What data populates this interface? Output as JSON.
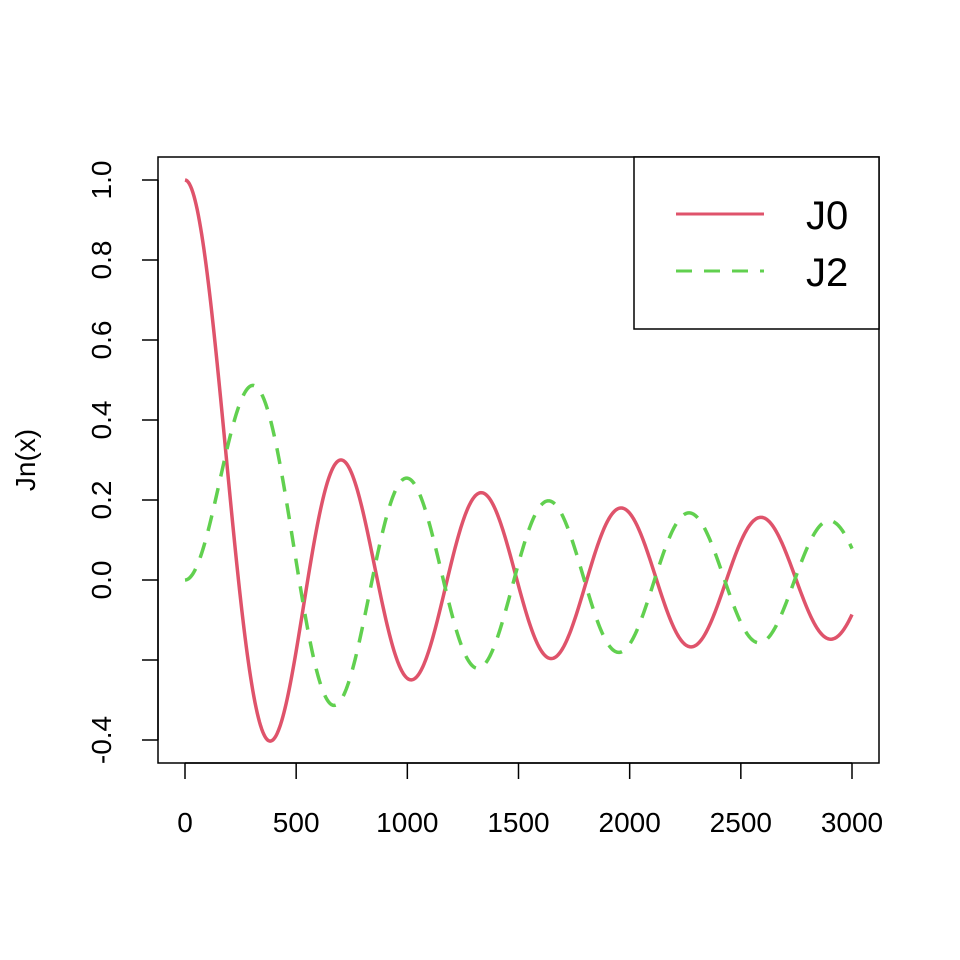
{
  "chart_data": {
    "type": "line",
    "title": "",
    "xlabel": "",
    "ylabel": "Jn(x)",
    "xlim": [
      0,
      3000
    ],
    "ylim": [
      -0.4,
      1.0
    ],
    "x_ticks": [
      0,
      500,
      1000,
      1500,
      2000,
      2500,
      3000
    ],
    "x_tick_labels": [
      "0",
      "500",
      "1000",
      "1500",
      "2000",
      "2500",
      "3000"
    ],
    "y_ticks": [
      -0.4,
      -0.2,
      0.0,
      0.2,
      0.4,
      0.6,
      0.8,
      1.0
    ],
    "y_tick_labels": [
      "-0.4",
      "",
      "0.0",
      "0.2",
      "0.4",
      "0.6",
      "0.8",
      "1.0"
    ],
    "grid": false,
    "legend_position": "top-right",
    "x_units_per_radian": 100,
    "series": [
      {
        "name": "J0",
        "function": "besselJ",
        "order": 0,
        "color": "#DF536B",
        "dash": "solid",
        "x_range": [
          0,
          3000
        ]
      },
      {
        "name": "J2",
        "function": "besselJ",
        "order": 2,
        "color": "#61D04F",
        "dash": "dashed",
        "x_range": [
          0,
          3000
        ]
      }
    ]
  }
}
